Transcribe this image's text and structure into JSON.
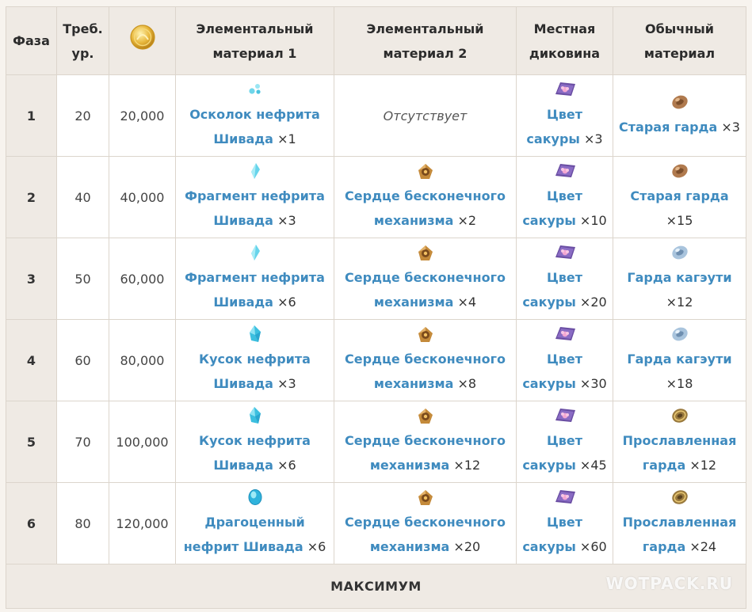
{
  "header": {
    "phase": "Фаза",
    "req_level": "Треб. ур.",
    "mora_icon": "mora-coin-icon",
    "elemental1": "Элементальный материал 1",
    "elemental2": "Элементальный материал 2",
    "local": "Местная диковина",
    "common": "Обычный материал"
  },
  "rows": [
    {
      "phase": "1",
      "level": "20",
      "mora": "20,000",
      "el1": {
        "icon": "jade-sliver-icon",
        "name": "Осколок нефрита Шивада",
        "qty": "×1"
      },
      "el2": {
        "absent": "Отсутствует"
      },
      "local": {
        "icon": "sakura-bloom-icon",
        "name": "Цвет сакуры",
        "qty": "×3"
      },
      "common": {
        "icon": "old-handguard-icon",
        "name": "Старая гарда",
        "qty": "×3"
      }
    },
    {
      "phase": "2",
      "level": "40",
      "mora": "40,000",
      "el1": {
        "icon": "jade-fragment-icon",
        "name": "Фрагмент нефрита Шивада",
        "qty": "×3"
      },
      "el2": {
        "icon": "perpetual-heart-icon",
        "name": "Сердце бесконечного механизма",
        "qty": "×2"
      },
      "local": {
        "icon": "sakura-bloom-icon",
        "name": "Цвет сакуры",
        "qty": "×10"
      },
      "common": {
        "icon": "old-handguard-icon",
        "name": "Старая гарда",
        "qty": "×15"
      }
    },
    {
      "phase": "3",
      "level": "50",
      "mora": "60,000",
      "el1": {
        "icon": "jade-fragment-icon",
        "name": "Фрагмент нефрита Шивада",
        "qty": "×6"
      },
      "el2": {
        "icon": "perpetual-heart-icon",
        "name": "Сердце бесконечного механизма",
        "qty": "×4"
      },
      "local": {
        "icon": "sakura-bloom-icon",
        "name": "Цвет сакуры",
        "qty": "×20"
      },
      "common": {
        "icon": "kageuchi-handguard-icon",
        "name": "Гарда кагэути",
        "qty": "×12"
      }
    },
    {
      "phase": "4",
      "level": "60",
      "mora": "80,000",
      "el1": {
        "icon": "jade-chunk-icon",
        "name": "Кусок нефрита Шивада",
        "qty": "×3"
      },
      "el2": {
        "icon": "perpetual-heart-icon",
        "name": "Сердце бесконечного механизма",
        "qty": "×8"
      },
      "local": {
        "icon": "sakura-bloom-icon",
        "name": "Цвет сакуры",
        "qty": "×30"
      },
      "common": {
        "icon": "kageuchi-handguard-icon",
        "name": "Гарда кагэути",
        "qty": "×18"
      }
    },
    {
      "phase": "5",
      "level": "70",
      "mora": "100,000",
      "el1": {
        "icon": "jade-chunk-icon",
        "name": "Кусок нефрита Шивада",
        "qty": "×6"
      },
      "el2": {
        "icon": "perpetual-heart-icon",
        "name": "Сердце бесконечного механизма",
        "qty": "×12"
      },
      "local": {
        "icon": "sakura-bloom-icon",
        "name": "Цвет сакуры",
        "qty": "×45"
      },
      "common": {
        "icon": "famed-handguard-icon",
        "name": "Прославленная гарда",
        "qty": "×12"
      }
    },
    {
      "phase": "6",
      "level": "80",
      "mora": "120,000",
      "el1": {
        "icon": "jade-gemstone-icon",
        "name": "Драгоценный нефрит Шивада",
        "qty": "×6"
      },
      "el2": {
        "icon": "perpetual-heart-icon",
        "name": "Сердце бесконечного механизма",
        "qty": "×20"
      },
      "local": {
        "icon": "sakura-bloom-icon",
        "name": "Цвет сакуры",
        "qty": "×60"
      },
      "common": {
        "icon": "famed-handguard-icon",
        "name": "Прославленная гарда",
        "qty": "×24"
      }
    }
  ],
  "footer": {
    "max_label": "МАКСИМУМ"
  },
  "watermark": "WOTPACK.RU",
  "colors": {
    "link": "#3f8bbf",
    "header_bg": "#efeae4",
    "border": "#dcd5cc"
  }
}
